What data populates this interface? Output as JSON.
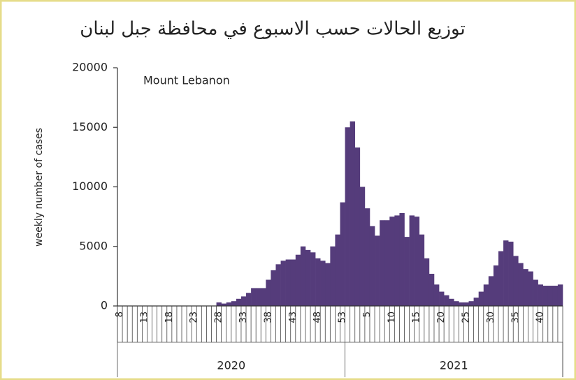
{
  "chart_data": {
    "type": "bar",
    "title": "توزيع الحالات حسب الاسبوع في محافظة جبل لبنان",
    "annotation": "Mount Lebanon",
    "y_label": "weekly number of cases",
    "color": "#553c7b",
    "ylim": [
      0,
      20000
    ],
    "yticks": [
      0,
      5000,
      10000,
      15000,
      20000
    ],
    "categories": [
      "8",
      null,
      null,
      null,
      null,
      "13",
      null,
      null,
      null,
      null,
      "18",
      null,
      null,
      null,
      null,
      "23",
      null,
      null,
      null,
      null,
      "28",
      null,
      null,
      null,
      null,
      "33",
      null,
      null,
      null,
      null,
      "38",
      null,
      null,
      null,
      null,
      "43",
      null,
      null,
      null,
      null,
      "48",
      null,
      null,
      null,
      null,
      "53",
      null,
      null,
      null,
      null,
      "5",
      null,
      null,
      null,
      null,
      "10",
      null,
      null,
      null,
      null,
      "15",
      null,
      null,
      null,
      null,
      "20",
      null,
      null,
      null,
      null,
      "25",
      null,
      null,
      null,
      null,
      "30",
      null,
      null,
      null,
      null,
      "35",
      null,
      null,
      null,
      null,
      "40",
      null,
      null,
      null,
      null
    ],
    "groups": [
      {
        "label": "2020",
        "count": 46
      },
      {
        "label": "2021",
        "count": 44
      }
    ],
    "values": [
      0,
      0,
      0,
      0,
      0,
      0,
      0,
      0,
      0,
      0,
      0,
      0,
      0,
      0,
      0,
      0,
      0,
      0,
      0,
      0,
      300,
      200,
      300,
      400,
      600,
      800,
      1100,
      1500,
      1500,
      1500,
      2200,
      3000,
      3500,
      3800,
      3900,
      3900,
      4300,
      5000,
      4700,
      4500,
      4000,
      3800,
      3600,
      5000,
      6000,
      8700,
      15000,
      15500,
      13300,
      10000,
      8200,
      6700,
      5900,
      7200,
      7200,
      7500,
      7600,
      7800,
      5800,
      7600,
      7500,
      6000,
      4000,
      2700,
      1800,
      1200,
      900,
      600,
      400,
      300,
      300,
      400,
      700,
      1200,
      1800,
      2500,
      3400,
      4600,
      5500,
      5400,
      4200,
      3600,
      3100,
      2900,
      2200,
      1800,
      1700,
      1700,
      1700,
      1800
    ]
  }
}
